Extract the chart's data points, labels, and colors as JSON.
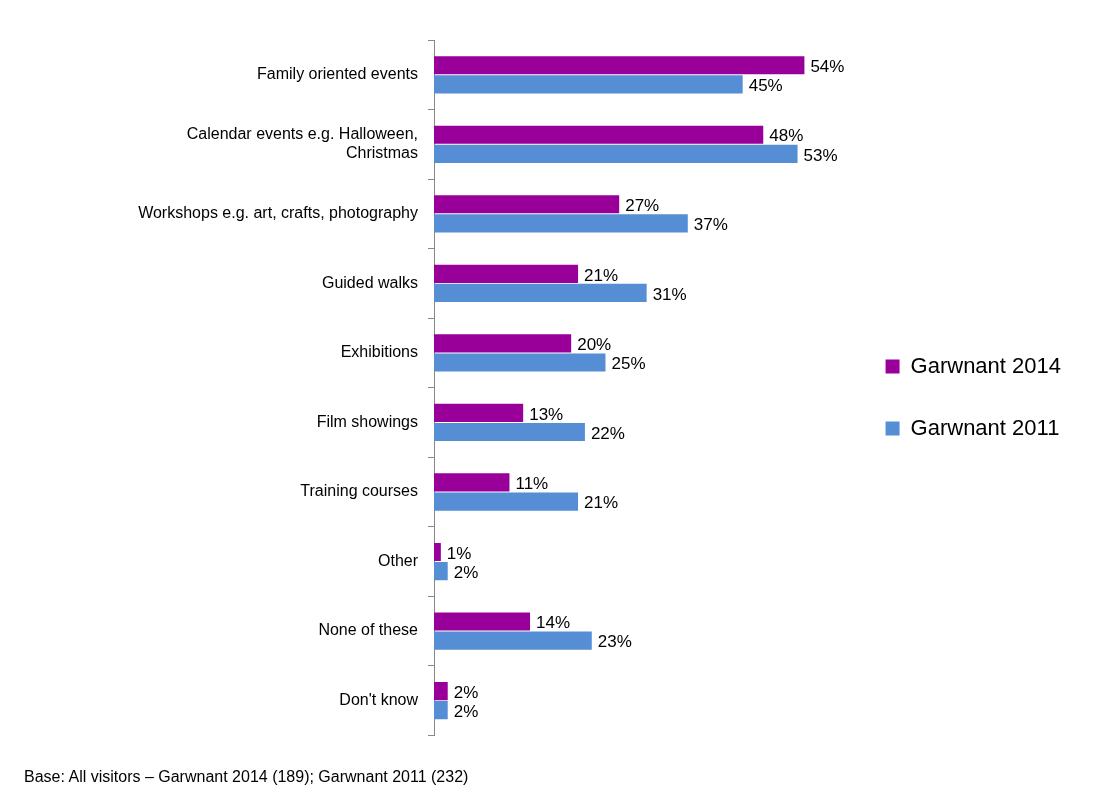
{
  "chart_data": {
    "type": "bar",
    "orientation": "horizontal",
    "categories": [
      "Family oriented events",
      "Calendar events e.g. Halloween, Christmas",
      "Workshops e.g. art, crafts, photography",
      "Guided walks",
      "Exhibitions",
      "Film showings",
      "Training courses",
      "Other",
      "None of these",
      "Don't know"
    ],
    "series": [
      {
        "name": "Garwnant 2014",
        "color": "#990099",
        "values": [
          54,
          48,
          27,
          21,
          20,
          13,
          11,
          1,
          14,
          2
        ],
        "value_labels": [
          "54%",
          "48%",
          "27%",
          "21%",
          "20%",
          "13%",
          "11%",
          "1%",
          "14%",
          "2%"
        ]
      },
      {
        "name": "Garwnant 2011",
        "color": "#558ed5",
        "values": [
          45,
          53,
          37,
          31,
          25,
          22,
          21,
          2,
          23,
          2
        ],
        "value_labels": [
          "45%",
          "53%",
          "37%",
          "31%",
          "25%",
          "22%",
          "21%",
          "2%",
          "23%",
          "2%"
        ]
      }
    ],
    "legend": "right",
    "annotations": [
      "Base: All visitors – Garwnant 2014 (189); Garwnant 2011 (232)"
    ]
  }
}
